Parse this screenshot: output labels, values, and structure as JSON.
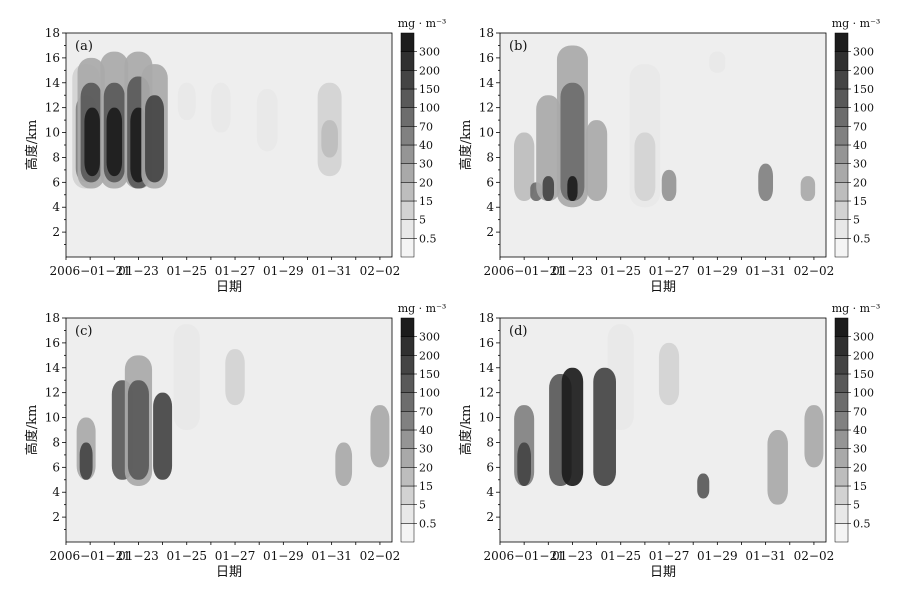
{
  "chart_data": [
    {
      "type": "heatmap",
      "panel_label": "(a)",
      "xlabel": "日期",
      "ylabel": "高度/km",
      "colorbar_unit": "mg · m⁻³",
      "x_tick_labels": [
        "2006−01−21",
        "01−23",
        "01−25",
        "01−27",
        "01−29",
        "01−31",
        "02−02"
      ],
      "x_tick_dates": [
        "2006-01-21",
        "2006-01-23",
        "2006-01-25",
        "2006-01-27",
        "2006-01-29",
        "2006-01-31",
        "2006-02-02"
      ],
      "xlim": [
        "2006-01-20",
        "2006-02-02 12:00"
      ],
      "ylim": [
        0,
        18
      ],
      "y_tick_labels": [
        "2",
        "4",
        "6",
        "8",
        "10",
        "12",
        "14",
        "16",
        "18"
      ],
      "colorbar_levels": [
        "0.5",
        "5",
        "15",
        "20",
        "30",
        "40",
        "70",
        "100",
        "150",
        "200",
        "300"
      ],
      "regions": [
        {
          "date": "2006-01-20 20:00",
          "z_bottom": 5.5,
          "z_top": 15.5,
          "level": 5
        },
        {
          "date": "2006-01-20 20:00",
          "z_bottom": 6,
          "z_top": 13,
          "level": 40
        },
        {
          "date": "2006-01-21 01:00",
          "z_bottom": 5.5,
          "z_top": 16,
          "level": 20
        },
        {
          "date": "2006-01-21 01:00",
          "z_bottom": 6,
          "z_top": 14,
          "level": 100
        },
        {
          "date": "2006-01-21 02:00",
          "z_bottom": 6.5,
          "z_top": 12,
          "level": 300
        },
        {
          "date": "2006-01-22 00:00",
          "z_bottom": 5.5,
          "z_top": 16.5,
          "level": 20
        },
        {
          "date": "2006-01-22 00:00",
          "z_bottom": 6,
          "z_top": 14,
          "level": 100
        },
        {
          "date": "2006-01-22 00:00",
          "z_bottom": 6.5,
          "z_top": 12,
          "level": 300
        },
        {
          "date": "2006-01-23 00:00",
          "z_bottom": 5.5,
          "z_top": 16.5,
          "level": 20
        },
        {
          "date": "2006-01-23 00:00",
          "z_bottom": 5.5,
          "z_top": 14.5,
          "level": 100
        },
        {
          "date": "2006-01-23 00:00",
          "z_bottom": 6,
          "z_top": 12,
          "level": 300
        },
        {
          "date": "2006-01-23 16:00",
          "z_bottom": 5.5,
          "z_top": 15.5,
          "level": 20
        },
        {
          "date": "2006-01-23 16:00",
          "z_bottom": 6,
          "z_top": 13,
          "level": 150
        },
        {
          "date": "2006-01-25 00:00",
          "z_bottom": 11,
          "z_top": 14,
          "level": 0.5
        },
        {
          "date": "2006-01-26 10:00",
          "z_bottom": 10,
          "z_top": 14,
          "level": 0.5
        },
        {
          "date": "2006-01-28 08:00",
          "z_bottom": 8.5,
          "z_top": 13.5,
          "level": 0.5
        },
        {
          "date": "2006-01-30 22:00",
          "z_bottom": 6.5,
          "z_top": 14,
          "level": 5
        },
        {
          "date": "2006-01-30 22:00",
          "z_bottom": 8,
          "z_top": 11,
          "level": 15
        }
      ]
    },
    {
      "type": "heatmap",
      "panel_label": "(b)",
      "xlabel": "日期",
      "ylabel": "高度/km",
      "colorbar_unit": "mg · m⁻³",
      "x_tick_labels": [
        "2006−01−21",
        "01−23",
        "01−25",
        "01−27",
        "01−29",
        "01−31",
        "02−02"
      ],
      "x_tick_dates": [
        "2006-01-21",
        "2006-01-23",
        "2006-01-25",
        "2006-01-27",
        "2006-01-29",
        "2006-01-31",
        "2006-02-02"
      ],
      "xlim": [
        "2006-01-20",
        "2006-02-02 12:00"
      ],
      "ylim": [
        0,
        18
      ],
      "y_tick_labels": [
        "2",
        "4",
        "6",
        "8",
        "10",
        "12",
        "14",
        "16",
        "18"
      ],
      "colorbar_levels": [
        "0.5",
        "5",
        "15",
        "20",
        "30",
        "40",
        "70",
        "100",
        "150",
        "200",
        "300"
      ],
      "regions": [
        {
          "date": "2006-01-26 00:00",
          "z_bottom": 4,
          "z_top": 15.5,
          "level": 0.5
        },
        {
          "date": "2006-01-26 00:00",
          "z_bottom": 4.5,
          "z_top": 10,
          "level": 5
        },
        {
          "date": "2006-01-29 00:00",
          "z_bottom": 14.8,
          "z_top": 16.5,
          "level": 0.5
        },
        {
          "date": "2006-01-21 00:00",
          "z_bottom": 4.5,
          "z_top": 10,
          "level": 15
        },
        {
          "date": "2006-01-21 12:00",
          "z_bottom": 4.5,
          "z_top": 6,
          "level": 70
        },
        {
          "date": "2006-01-22 00:00",
          "z_bottom": 4.5,
          "z_top": 13,
          "level": 20
        },
        {
          "date": "2006-01-22 00:00",
          "z_bottom": 4.5,
          "z_top": 6.5,
          "level": 150
        },
        {
          "date": "2006-01-23 00:00",
          "z_bottom": 4,
          "z_top": 17,
          "level": 20
        },
        {
          "date": "2006-01-23 00:00",
          "z_bottom": 4.5,
          "z_top": 14,
          "level": 70
        },
        {
          "date": "2006-01-23 00:00",
          "z_bottom": 4.5,
          "z_top": 6.5,
          "level": 300
        },
        {
          "date": "2006-01-24 00:00",
          "z_bottom": 4.5,
          "z_top": 11,
          "level": 20
        },
        {
          "date": "2006-01-27 00:00",
          "z_bottom": 4.5,
          "z_top": 7,
          "level": 30
        },
        {
          "date": "2006-01-31 00:00",
          "z_bottom": 4.5,
          "z_top": 7.5,
          "level": 40
        },
        {
          "date": "2006-02-01 18:00",
          "z_bottom": 4.5,
          "z_top": 6.5,
          "level": 20
        }
      ]
    },
    {
      "type": "heatmap",
      "panel_label": "(c)",
      "xlabel": "日期",
      "ylabel": "高度/km",
      "colorbar_unit": "mg · m⁻³",
      "x_tick_labels": [
        "2006−01−21",
        "01−23",
        "01−25",
        "01−27",
        "01−29",
        "01−31",
        "02−02"
      ],
      "x_tick_dates": [
        "2006-01-21",
        "2006-01-23",
        "2006-01-25",
        "2006-01-27",
        "2006-01-29",
        "2006-01-31",
        "2006-02-02"
      ],
      "xlim": [
        "2006-01-20",
        "2006-02-02 12:00"
      ],
      "ylim": [
        0,
        18
      ],
      "y_tick_labels": [
        "2",
        "4",
        "6",
        "8",
        "10",
        "12",
        "14",
        "16",
        "18"
      ],
      "colorbar_levels": [
        "0.5",
        "5",
        "15",
        "20",
        "30",
        "40",
        "70",
        "100",
        "150",
        "200",
        "300"
      ],
      "regions": [
        {
          "date": "2006-01-25 00:00",
          "z_bottom": 9,
          "z_top": 17.5,
          "level": 0.5
        },
        {
          "date": "2006-01-27 00:00",
          "z_bottom": 11,
          "z_top": 15.5,
          "level": 5
        },
        {
          "date": "2006-01-20 20:00",
          "z_bottom": 5,
          "z_top": 10,
          "level": 20
        },
        {
          "date": "2006-01-20 20:00",
          "z_bottom": 5,
          "z_top": 8,
          "level": 150
        },
        {
          "date": "2006-01-22 08:00",
          "z_bottom": 5,
          "z_top": 13,
          "level": 100
        },
        {
          "date": "2006-01-23 00:00",
          "z_bottom": 4.5,
          "z_top": 15,
          "level": 20
        },
        {
          "date": "2006-01-23 00:00",
          "z_bottom": 5,
          "z_top": 13,
          "level": 100
        },
        {
          "date": "2006-01-24 00:00",
          "z_bottom": 5,
          "z_top": 12,
          "level": 150
        },
        {
          "date": "2006-01-31 12:00",
          "z_bottom": 4.5,
          "z_top": 8,
          "level": 20
        },
        {
          "date": "2006-02-02 00:00",
          "z_bottom": 6,
          "z_top": 11,
          "level": 20
        }
      ]
    },
    {
      "type": "heatmap",
      "panel_label": "(d)",
      "xlabel": "日期",
      "ylabel": "高度/km",
      "colorbar_unit": "mg · m⁻³",
      "x_tick_labels": [
        "2006−01−21",
        "01−23",
        "01−25",
        "01−27",
        "01−29",
        "01−31",
        "02−02"
      ],
      "x_tick_dates": [
        "2006-01-21",
        "2006-01-23",
        "2006-01-25",
        "2006-01-27",
        "2006-01-29",
        "2006-01-31",
        "2006-02-02"
      ],
      "xlim": [
        "2006-01-20",
        "2006-02-02 12:00"
      ],
      "ylim": [
        0,
        18
      ],
      "y_tick_labels": [
        "2",
        "4",
        "6",
        "8",
        "10",
        "12",
        "14",
        "16",
        "18"
      ],
      "colorbar_levels": [
        "0.5",
        "5",
        "15",
        "20",
        "30",
        "40",
        "70",
        "100",
        "150",
        "200",
        "300"
      ],
      "regions": [
        {
          "date": "2006-01-25 00:00",
          "z_bottom": 9,
          "z_top": 17.5,
          "level": 0.5
        },
        {
          "date": "2006-01-27 00:00",
          "z_bottom": 11,
          "z_top": 16,
          "level": 5
        },
        {
          "date": "2006-01-21 00:00",
          "z_bottom": 4.5,
          "z_top": 11,
          "level": 40
        },
        {
          "date": "2006-01-21 00:00",
          "z_bottom": 4.5,
          "z_top": 8,
          "level": 150
        },
        {
          "date": "2006-01-22 12:00",
          "z_bottom": 4.5,
          "z_top": 13.5,
          "level": 100
        },
        {
          "date": "2006-01-23 00:00",
          "z_bottom": 4.5,
          "z_top": 14,
          "level": 300
        },
        {
          "date": "2006-01-24 08:00",
          "z_bottom": 4.5,
          "z_top": 14,
          "level": 150
        },
        {
          "date": "2006-01-28 10:00",
          "z_bottom": 3.5,
          "z_top": 5.5,
          "level": 100
        },
        {
          "date": "2006-01-31 12:00",
          "z_bottom": 3,
          "z_top": 9,
          "level": 20
        },
        {
          "date": "2006-02-02 00:00",
          "z_bottom": 6,
          "z_top": 11,
          "level": 20
        }
      ]
    }
  ]
}
